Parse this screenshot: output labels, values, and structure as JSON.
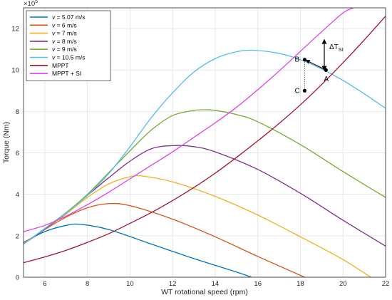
{
  "chart_data": {
    "type": "line",
    "xlabel": "WT rotational speed (rpm)",
    "ylabel": "Torque (Nm)",
    "exponent_base": "×10",
    "exponent_power": "5",
    "xlim": [
      5,
      22
    ],
    "ylim": [
      0,
      13
    ],
    "xticks": [
      "6",
      "8",
      "10",
      "12",
      "14",
      "16",
      "18",
      "20",
      "22"
    ],
    "yticks": [
      "0",
      "2",
      "4",
      "6",
      "8",
      "10",
      "12"
    ],
    "grid": true,
    "legend_position": "top-left",
    "colors": {
      "v507": "#0072BD",
      "v6": "#D95319",
      "v7": "#EDB120",
      "v8": "#7E2F8E",
      "v9": "#77AC30",
      "v105": "#4DBEEE",
      "mppt": "#A2142F",
      "mppt_si": "#E040E8"
    },
    "series": [
      {
        "key": "v507",
        "name": "v = 5.07 m/s",
        "v_symbol": "v",
        "rest": " = 5.07 m/s",
        "x": [
          5,
          6,
          7,
          7.7,
          9,
          11,
          13,
          15,
          15.7
        ],
        "y": [
          1.68,
          2.2,
          2.5,
          2.55,
          2.3,
          1.6,
          0.9,
          0.25,
          0
        ]
      },
      {
        "key": "v6",
        "name": "v = 6 m/s",
        "v_symbol": "v",
        "rest": " = 6 m/s",
        "x": [
          5,
          6,
          7,
          8,
          9,
          10,
          12,
          14,
          16,
          18.2
        ],
        "y": [
          1.65,
          2.3,
          2.9,
          3.35,
          3.55,
          3.45,
          2.8,
          1.95,
          1.0,
          0
        ]
      },
      {
        "key": "v7",
        "name": "v = 7 m/s",
        "v_symbol": "v",
        "rest": " = 7 m/s",
        "x": [
          5,
          6,
          7,
          8,
          9,
          10,
          10.6,
          12,
          14,
          16,
          18,
          20,
          21.3
        ],
        "y": [
          1.62,
          2.32,
          3.05,
          3.85,
          4.5,
          4.85,
          4.88,
          4.6,
          3.9,
          3.0,
          1.95,
          0.85,
          0
        ]
      },
      {
        "key": "v8",
        "name": "v = 8 m/s",
        "v_symbol": "v",
        "rest": " = 8 m/s",
        "x": [
          5,
          6,
          7,
          8,
          9,
          10,
          11,
          12,
          13,
          14,
          16,
          18,
          20,
          22
        ],
        "y": [
          1.6,
          2.32,
          3.1,
          3.95,
          4.8,
          5.6,
          6.2,
          6.35,
          6.3,
          6.05,
          5.2,
          4.05,
          2.75,
          1.5
        ]
      },
      {
        "key": "v9",
        "name": "v = 9 m/s",
        "v_symbol": "v",
        "rest": " = 9 m/s",
        "x": [
          5,
          6,
          7,
          8,
          9,
          10,
          11,
          12,
          13,
          13.6,
          14,
          15,
          16,
          18,
          20,
          22
        ],
        "y": [
          1.6,
          2.35,
          3.12,
          4.0,
          5.05,
          6.1,
          7.1,
          7.8,
          8.05,
          8.08,
          8.05,
          7.85,
          7.5,
          6.4,
          5.1,
          3.85
        ]
      },
      {
        "key": "v105",
        "name": "v = 10.5 m/s",
        "v_symbol": "v",
        "rest": " = 10.5 m/s",
        "x": [
          5,
          6,
          7,
          8,
          9,
          10,
          11,
          12,
          13,
          14,
          15,
          15.8,
          17,
          18,
          19,
          20,
          21,
          22
        ],
        "y": [
          1.6,
          2.35,
          3.1,
          3.95,
          5.0,
          6.3,
          7.7,
          8.9,
          9.9,
          10.55,
          10.88,
          10.95,
          10.8,
          10.5,
          10.05,
          9.5,
          8.85,
          8.15
        ]
      },
      {
        "key": "mppt",
        "name": "MPPT",
        "v_symbol": "",
        "rest": "MPPT",
        "x": [
          5,
          6,
          7,
          8,
          9,
          10,
          11,
          12,
          13,
          14,
          15,
          16,
          17,
          18,
          19,
          20,
          21,
          22
        ],
        "y": [
          0.7,
          0.98,
          1.3,
          1.68,
          2.1,
          2.6,
          3.12,
          3.7,
          4.33,
          5.02,
          5.78,
          6.58,
          7.42,
          8.32,
          9.3,
          10.35,
          11.45,
          12.6
        ]
      },
      {
        "key": "mppt_si",
        "name": "MPPT + SI",
        "v_symbol": "",
        "rest": "MPPT + SI",
        "x": [
          5,
          6,
          7,
          8,
          9,
          10,
          11,
          12,
          13,
          14,
          15,
          16,
          17,
          18,
          19,
          20,
          20.5
        ],
        "y": [
          2.2,
          2.5,
          2.95,
          3.5,
          4.1,
          4.75,
          5.4,
          6.05,
          6.75,
          7.45,
          8.2,
          9.05,
          9.95,
          10.9,
          11.85,
          12.75,
          13
        ]
      }
    ],
    "points": [
      {
        "label": "A",
        "x": 19.2,
        "y": 10.0
      },
      {
        "label": "B",
        "x": 18.2,
        "y": 10.5
      },
      {
        "label": "C",
        "x": 18.2,
        "y": 9.0
      }
    ],
    "annotation": {
      "text": "ΔT",
      "sub": "SI"
    }
  }
}
